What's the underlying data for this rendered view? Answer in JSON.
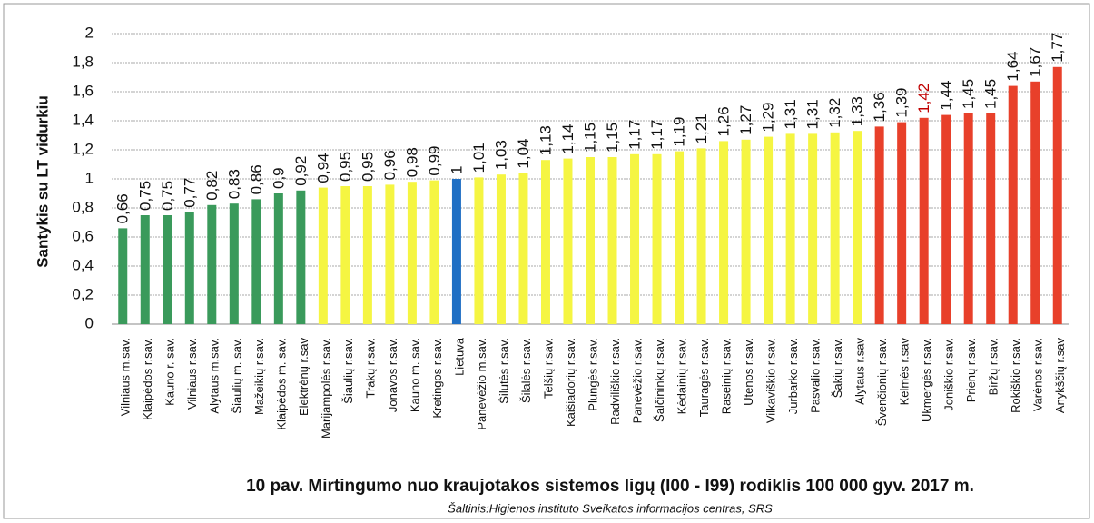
{
  "chart_data": {
    "type": "bar",
    "title": "10 pav. Mirtingumo nuo kraujotakos sistemos ligų (I00 - I99) rodiklis 100 000 gyv. 2017 m.",
    "subtitle": "Šaltinis:Higienos instituto Sveikatos informacijos centras, SRS",
    "y_label": "Santykis su LT vidurkiu",
    "categories": [
      "Vilniaus m.sav.",
      "Klaipėdos r.sav.",
      "Kauno r. sav.",
      "Vilniaus r.sav.",
      "Alytaus m.sav.",
      "Šiaulių m. sav.",
      "Mažeikių r.sav.",
      "Klaipėdos m. sav.",
      "Elektrėnų r.sav",
      "Marijampolės r.sav.",
      "Šiaulių r.sav.",
      "Trakų r.sav.",
      "Jonavos r.sav.",
      "Kauno m. sav.",
      "Kretingos r.sav.",
      "Lietuva",
      "Panevėžio m.sav.",
      "Šilutės r.sav.",
      "Šilalės r.sav.",
      "Telšių r.sav.",
      "Kaišiadorių r.sav.",
      "Plungės r.sav.",
      "Radviliškio r.sav.",
      "Panevėžio r.sav.",
      "Šalčininkų r.sav.",
      "Kėdainių r.sav.",
      "Tauragės r.sav.",
      "Raseinių r.sav.",
      "Utenos r.sav.",
      "Vilkaviškio r.sav.",
      "Jurbarko r.sav.",
      "Pasvalio r.sav.",
      "Šakių r.sav.",
      "Alytaus r.sav",
      "Švenčionių r.sav.",
      "Kelmės r.sav",
      "Ukmergės r.sav.",
      "Joniškio r.sav.",
      "Prienų r.sav.",
      "Biržų r.sav.",
      "Rokiškio r.sav.",
      "Varėnos r.sav.",
      "Anykščių r.sav"
    ],
    "values": [
      0.66,
      0.75,
      0.75,
      0.77,
      0.82,
      0.83,
      0.86,
      0.9,
      0.92,
      0.94,
      0.95,
      0.95,
      0.96,
      0.98,
      0.99,
      1,
      1.01,
      1.03,
      1.04,
      1.13,
      1.14,
      1.15,
      1.15,
      1.17,
      1.17,
      1.19,
      1.21,
      1.26,
      1.27,
      1.29,
      1.31,
      1.31,
      1.32,
      1.33,
      1.36,
      1.39,
      1.42,
      1.44,
      1.45,
      1.45,
      1.64,
      1.67,
      1.77
    ],
    "value_labels": [
      "0,66",
      "0,75",
      "0,75",
      "0,77",
      "0,82",
      "0,83",
      "0,86",
      "0,9",
      "0,92",
      "0,94",
      "0,95",
      "0,95",
      "0,96",
      "0,98",
      "0,99",
      "1",
      "1,01",
      "1,03",
      "1,04",
      "1,13",
      "1,14",
      "1,15",
      "1,15",
      "1,17",
      "1,17",
      "1,19",
      "1,21",
      "1,26",
      "1,27",
      "1,29",
      "1,31",
      "1,31",
      "1,32",
      "1,33",
      "1,36",
      "1,39",
      "1,42",
      "1,44",
      "1,45",
      "1,45",
      "1,64",
      "1,67",
      "1,77"
    ],
    "colors": [
      "#3a9a5b",
      "#3a9a5b",
      "#3a9a5b",
      "#3a9a5b",
      "#3a9a5b",
      "#3a9a5b",
      "#3a9a5b",
      "#3a9a5b",
      "#3a9a5b",
      "#f5f542",
      "#f5f542",
      "#f5f542",
      "#f5f542",
      "#f5f542",
      "#f5f542",
      "#1f6fc4",
      "#f5f542",
      "#f5f542",
      "#f5f542",
      "#f5f542",
      "#f5f542",
      "#f5f542",
      "#f5f542",
      "#f5f542",
      "#f5f542",
      "#f5f542",
      "#f5f542",
      "#f5f542",
      "#f5f542",
      "#f5f542",
      "#f5f542",
      "#f5f542",
      "#f5f542",
      "#f5f542",
      "#e8402a",
      "#e8402a",
      "#e8402a",
      "#e8402a",
      "#e8402a",
      "#e8402a",
      "#e8402a",
      "#e8402a",
      "#e8402a"
    ],
    "value_label_colors": [
      "#111",
      "#111",
      "#111",
      "#111",
      "#111",
      "#111",
      "#111",
      "#111",
      "#111",
      "#111",
      "#111",
      "#111",
      "#111",
      "#111",
      "#111",
      "#111",
      "#111",
      "#111",
      "#111",
      "#111",
      "#111",
      "#111",
      "#111",
      "#111",
      "#111",
      "#111",
      "#111",
      "#111",
      "#111",
      "#111",
      "#111",
      "#111",
      "#111",
      "#111",
      "#111",
      "#111",
      "#c00000",
      "#111",
      "#111",
      "#111",
      "#111",
      "#111",
      "#111"
    ],
    "ylim": [
      0,
      2
    ],
    "yticks": [
      0,
      {
        "value": 0.2,
        "label": "0,2"
      },
      {
        "value": 0.4,
        "label": "0,4"
      },
      {
        "value": 0.6,
        "label": "0,6"
      },
      {
        "value": 0.8,
        "label": "0,8"
      },
      1,
      {
        "value": 1.2,
        "label": "1,2"
      },
      {
        "value": 1.4,
        "label": "1,4"
      },
      {
        "value": 1.6,
        "label": "1,6"
      },
      {
        "value": 1.8,
        "label": "1,8"
      },
      2
    ],
    "grid": true
  }
}
